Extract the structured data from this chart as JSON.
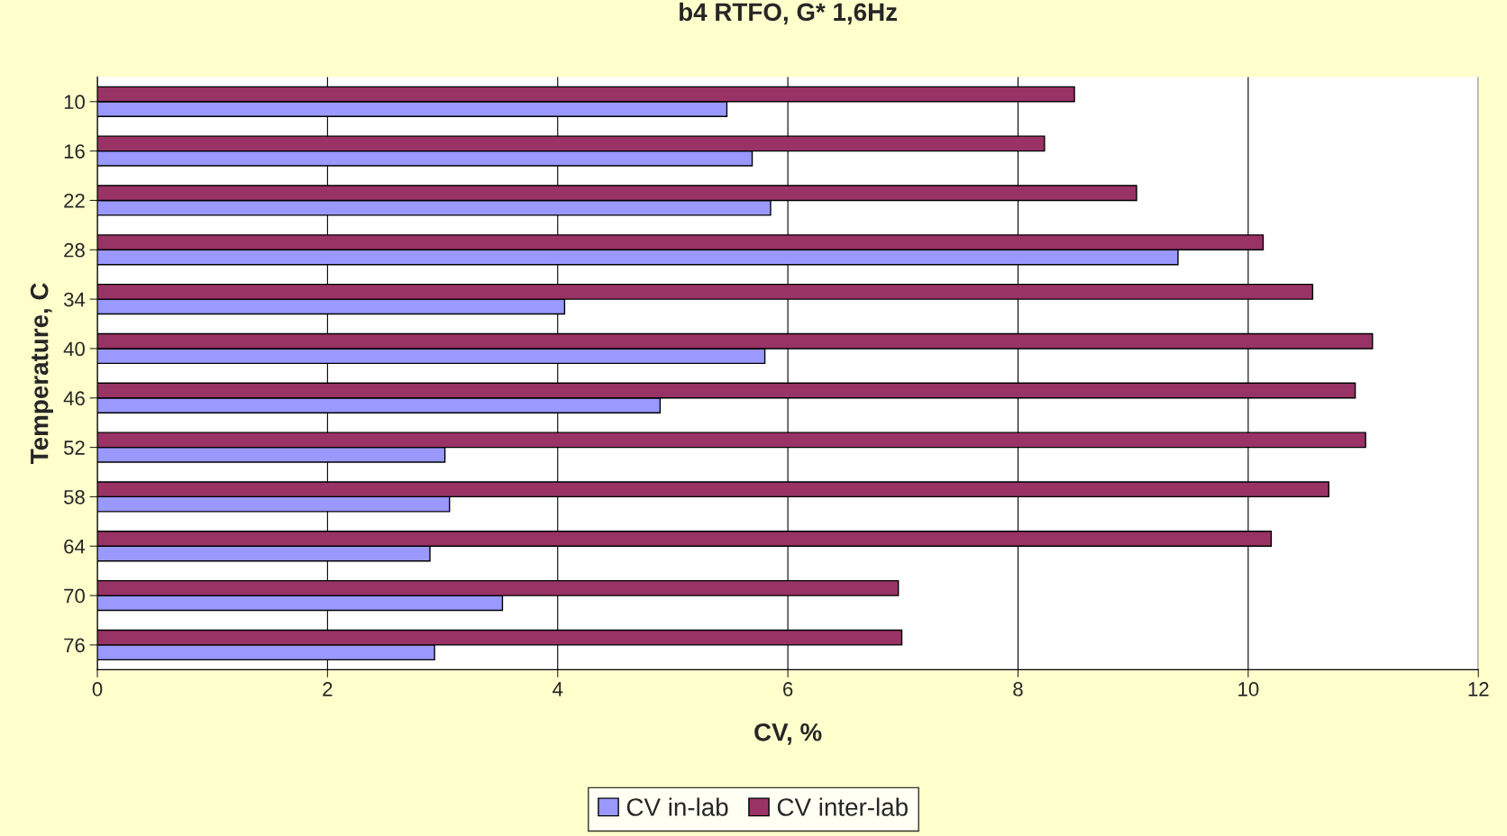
{
  "chart_data": {
    "type": "bar",
    "orientation": "horizontal",
    "title": "b4 RTFO, G* 1,6Hz",
    "xlabel": "CV, %",
    "ylabel": "Temperature, C",
    "categories": [
      "10",
      "16",
      "22",
      "28",
      "34",
      "40",
      "46",
      "52",
      "58",
      "64",
      "70",
      "76"
    ],
    "series": [
      {
        "name": "CV in-lab",
        "color": "#9999ff",
        "values": [
          5.47,
          5.69,
          5.85,
          9.39,
          4.06,
          5.8,
          4.89,
          3.02,
          3.06,
          2.89,
          3.52,
          2.93
        ]
      },
      {
        "name": "CV inter-lab",
        "color": "#993366",
        "values": [
          8.49,
          8.23,
          9.03,
          10.13,
          10.56,
          11.08,
          10.93,
          11.02,
          10.7,
          10.2,
          6.96,
          6.99
        ]
      }
    ],
    "xlim": [
      0,
      12
    ],
    "xticks": [
      0,
      2,
      4,
      6,
      8,
      10,
      12
    ],
    "grid": "x",
    "legend": "bottom"
  }
}
